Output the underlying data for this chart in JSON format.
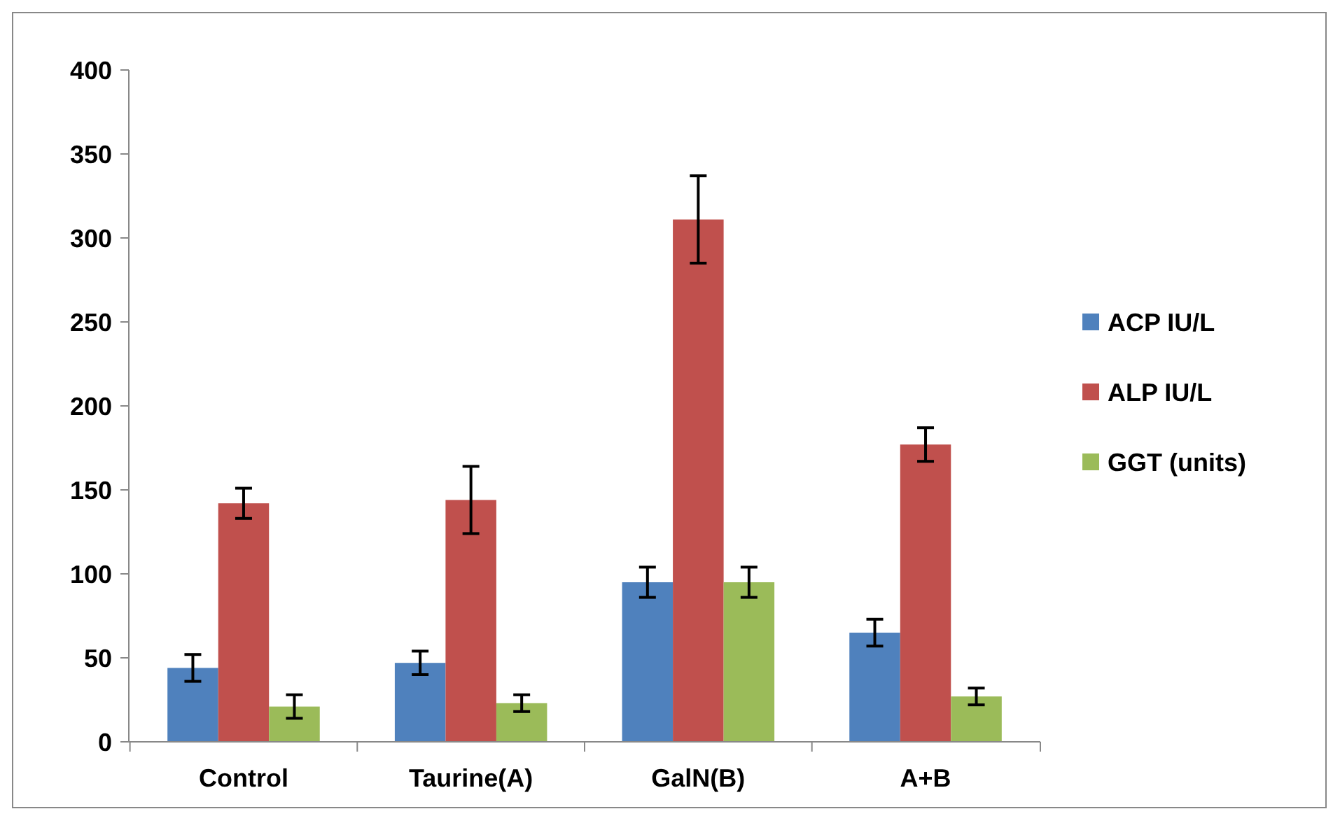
{
  "chart_data": {
    "type": "bar",
    "categories": [
      "Control",
      "Taurine(A)",
      "GalN(B)",
      "A+B"
    ],
    "series": [
      {
        "name": "ACP IU/L",
        "color": "#4f81bd",
        "values": [
          44,
          47,
          95,
          65
        ],
        "errors": [
          8,
          7,
          9,
          8
        ]
      },
      {
        "name": "ALP IU/L",
        "color": "#c0504d",
        "values": [
          142,
          144,
          311,
          177
        ],
        "errors": [
          9,
          20,
          26,
          10
        ]
      },
      {
        "name": "GGT (units)",
        "color": "#9bbb59",
        "values": [
          21,
          23,
          95,
          27
        ],
        "errors": [
          7,
          5,
          9,
          5
        ]
      }
    ],
    "ylim": [
      0,
      400
    ],
    "yticks": [
      0,
      50,
      100,
      150,
      200,
      250,
      300,
      350,
      400
    ],
    "grid": false,
    "legend": "right"
  }
}
